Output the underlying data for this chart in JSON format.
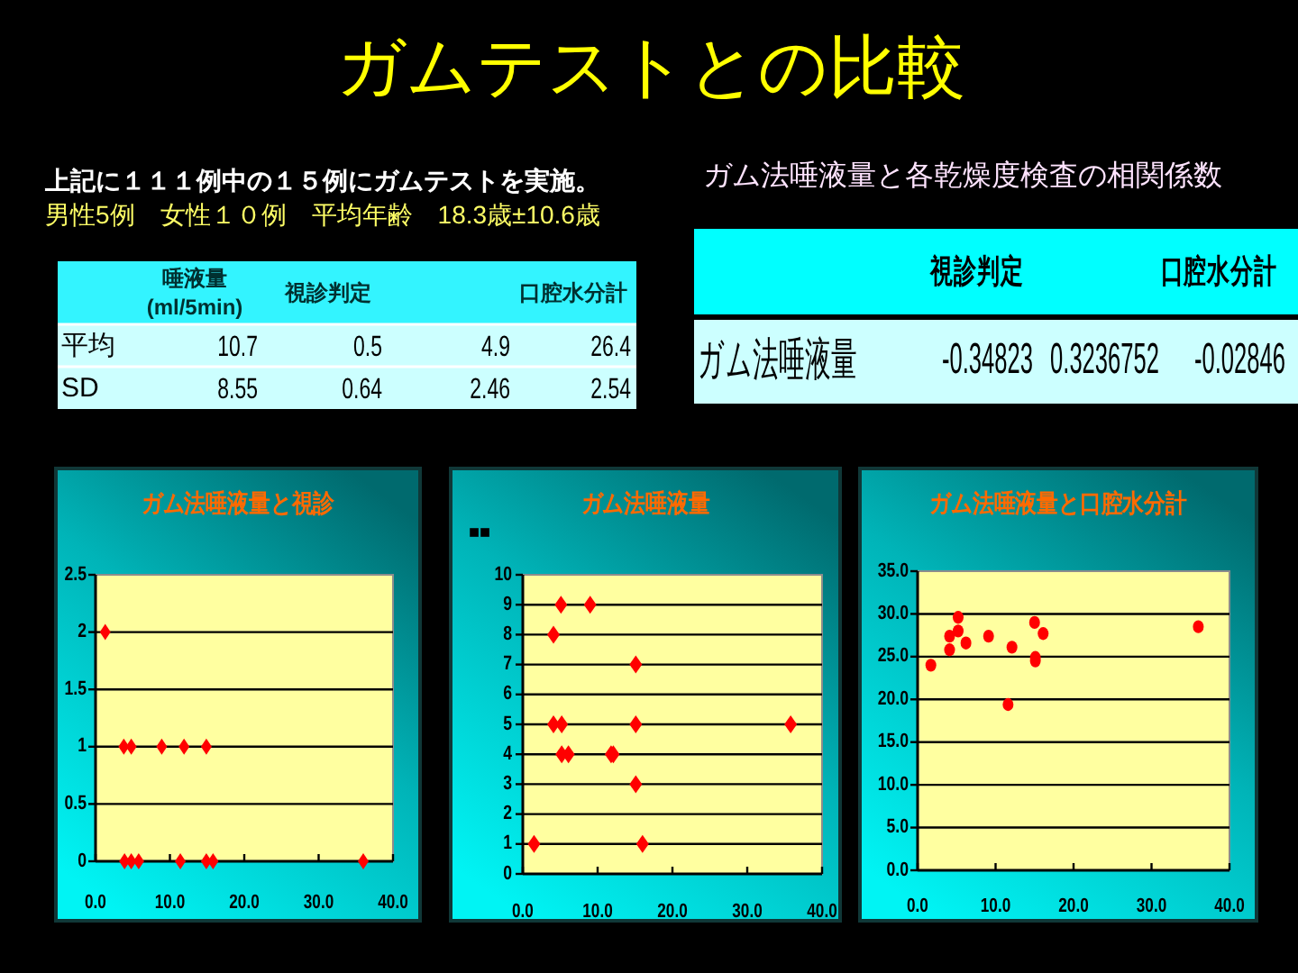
{
  "chart_data": [
    {
      "type": "heatmap",
      "title": "ガムテストとの比較",
      "annotations": [
        "上記に１１１例中の１５例にガムテストを実施。",
        "男性5例　女性１０例　平均年齢　18.3歳±10.6歳"
      ],
      "categories": [
        "唾液量\n(ml/5min)",
        "視診判定",
        null,
        "口腔水分計"
      ],
      "y_categories": [
        "平均",
        "SD"
      ],
      "cells": [
        [
          10.7,
          0.5,
          4.9,
          26.4
        ],
        [
          8.55,
          0.64,
          2.46,
          2.54
        ]
      ],
      "data_labels": true
    },
    {
      "type": "heatmap",
      "title": "ガム法唾液量と各乾燥度検査の相関係数",
      "categories": [
        "視診判定",
        null,
        "口腔水分計"
      ],
      "y_categories": [
        "ガム法唾液量"
      ],
      "cells": [
        [
          -0.34823,
          0.3236752,
          -0.02846
        ]
      ],
      "data_labels": true
    },
    {
      "type": "scatter",
      "title": "ガム法唾液量と視診",
      "x": [
        1.3,
        3.8,
        3.9,
        4.8,
        4.8,
        5.8,
        8.9,
        11.4,
        11.9,
        14.9,
        14.9,
        15.8,
        36.0
      ],
      "values": [
        2,
        1,
        0,
        1,
        0,
        0,
        1,
        0,
        1,
        1,
        0,
        0,
        0
      ],
      "color": "#ff0000",
      "marker": "diamond",
      "xlim": [
        0,
        40
      ],
      "xticks": [
        {
          "value": 0,
          "label": "0.0"
        },
        {
          "value": 10,
          "label": "10.0"
        },
        {
          "value": 20,
          "label": "20.0"
        },
        {
          "value": 30,
          "label": "30.0"
        },
        {
          "value": 40,
          "label": "40.0"
        }
      ],
      "ylim": [
        0,
        2.5
      ],
      "yticks": [
        0,
        0.5,
        1,
        1.5,
        2,
        2.5
      ],
      "grid": "y"
    },
    {
      "type": "scatter",
      "title": "ガム法唾液量",
      "ylabel": "■■",
      "x": [
        1.5,
        4.1,
        4.1,
        5.1,
        5.2,
        5.2,
        6.1,
        9.0,
        11.8,
        12.1,
        15.1,
        15.1,
        15.1,
        16.0,
        35.8
      ],
      "values": [
        1,
        8,
        5,
        9,
        5,
        4,
        4,
        9,
        4,
        4,
        7,
        5,
        3,
        1,
        5
      ],
      "color": "#ff0000",
      "marker": "diamond",
      "xlim": [
        0,
        40
      ],
      "xticks": [
        {
          "value": 0,
          "label": "0.0"
        },
        {
          "value": 10,
          "label": "10.0"
        },
        {
          "value": 20,
          "label": "20.0"
        },
        {
          "value": 30,
          "label": "30.0"
        },
        {
          "value": 40,
          "label": "40.0"
        }
      ],
      "ylim": [
        0,
        10
      ],
      "yticks": [
        0,
        1,
        2,
        3,
        4,
        5,
        6,
        7,
        8,
        9,
        10
      ],
      "grid": "y"
    },
    {
      "type": "scatter",
      "title": "ガム法唾液量と口腔水分計",
      "x": [
        1.7,
        4.1,
        4.1,
        5.2,
        5.2,
        6.2,
        9.1,
        11.6,
        12.1,
        15.0,
        15.1,
        15.1,
        16.1,
        36.0
      ],
      "values": [
        24.0,
        27.4,
        25.8,
        29.6,
        28.0,
        26.6,
        27.4,
        19.4,
        26.1,
        29.0,
        24.9,
        24.5,
        27.7,
        28.5
      ],
      "color": "#ff0000",
      "marker": "circle",
      "xlim": [
        0,
        40
      ],
      "xticks": [
        {
          "value": 0,
          "label": "0.0"
        },
        {
          "value": 10,
          "label": "10.0"
        },
        {
          "value": 20,
          "label": "20.0"
        },
        {
          "value": 30,
          "label": "30.0"
        },
        {
          "value": 40,
          "label": "40.0"
        }
      ],
      "ylim": [
        0,
        35
      ],
      "yticks": [
        {
          "value": 0,
          "label": "0.0"
        },
        {
          "value": 5,
          "label": "5.0"
        },
        {
          "value": 10,
          "label": "10.0"
        },
        {
          "value": 15,
          "label": "15.0"
        },
        {
          "value": 20,
          "label": "20.0"
        },
        {
          "value": 25,
          "label": "25.0"
        },
        {
          "value": 30,
          "label": "30.0"
        },
        {
          "value": 35,
          "label": "35.0"
        }
      ],
      "grid": "y"
    }
  ]
}
